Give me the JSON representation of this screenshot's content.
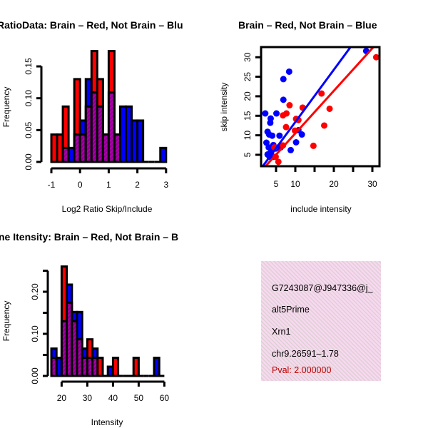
{
  "colors": {
    "red": "#ff0000",
    "blue": "#0000ff",
    "overlap": "#8b008b",
    "pval": "#c00000",
    "panel_bg": "#f6d6ee"
  },
  "chart_data": [
    {
      "type": "bar",
      "title": "RatioData: Brain – Red, Not Brain – Blu",
      "xlabel": "Log2 Ratio Skip/Include",
      "ylabel": "Frequency",
      "xlim": [
        -1,
        3
      ],
      "ylim": [
        0,
        0.15
      ],
      "xticks": [
        "-1",
        "0",
        "1",
        "2",
        "3"
      ],
      "xtick_values": [
        -1,
        0,
        1,
        2,
        3
      ],
      "yticks": [
        "0.00",
        "0.05",
        "0.10",
        "0.15"
      ],
      "ytick_values": [
        0,
        0.05,
        0.1,
        0.15
      ],
      "bin_start": -1,
      "bin_width": 0.2,
      "series": [
        {
          "name": "Brain",
          "color": "red",
          "values": [
            0.043,
            0.043,
            0.087,
            0,
            0.13,
            0.043,
            0.087,
            0.174,
            0.13,
            0.043,
            0.174,
            0.043,
            0,
            0,
            0,
            0,
            0,
            0,
            0,
            0
          ]
        },
        {
          "name": "Not Brain",
          "color": "blue",
          "values": [
            0,
            0,
            0.022,
            0.022,
            0.043,
            0.065,
            0.13,
            0.109,
            0.087,
            0.043,
            0.109,
            0.043,
            0.087,
            0.087,
            0.065,
            0.065,
            0,
            0,
            0,
            0.022
          ]
        }
      ]
    },
    {
      "type": "scatter",
      "title": "Brain – Red, Not Brain – Blue",
      "xlabel": "include intensity",
      "ylabel": "skip intensity",
      "xlim": [
        1.1,
        31.8
      ],
      "ylim": [
        2.1,
        32.6
      ],
      "xticks": [
        "5",
        "10",
        "",
        "20",
        "",
        "30"
      ],
      "xtick_values": [
        5,
        10,
        15,
        20,
        25,
        30
      ],
      "yticks": [
        "5",
        "10",
        "15",
        "20",
        "25",
        "30"
      ],
      "ytick_values": [
        5,
        10,
        15,
        20,
        25,
        30
      ],
      "series": [
        {
          "name": "Not Brain",
          "color": "blue",
          "points": [
            [
              2.2,
              15.6
            ],
            [
              3.6,
              14.3
            ],
            [
              3.5,
              13.2
            ],
            [
              5.1,
              15.6
            ],
            [
              6.9,
              24.4
            ],
            [
              8.4,
              26.3
            ],
            [
              6.9,
              19.1
            ],
            [
              2.8,
              10.9
            ],
            [
              3.2,
              10.2
            ],
            [
              4.0,
              9.9
            ],
            [
              5.9,
              9.9
            ],
            [
              10.2,
              8.2
            ],
            [
              8.8,
              6.2
            ],
            [
              10.8,
              11.3
            ],
            [
              11.7,
              10.2
            ],
            [
              28.4,
              31.6
            ],
            [
              2.5,
              8.1
            ],
            [
              3.1,
              6.9
            ],
            [
              3.7,
              5.7
            ],
            [
              4.3,
              7.5
            ],
            [
              4.9,
              6.6
            ],
            [
              2.8,
              5.1
            ],
            [
              3.3,
              4.5
            ],
            [
              4.3,
              4.5
            ],
            [
              5.6,
              6.9
            ],
            [
              6.2,
              6.9
            ]
          ],
          "fit": {
            "slope": 1.34,
            "intercept": 0.0
          }
        },
        {
          "name": "Brain",
          "color": "red",
          "points": [
            [
              8.5,
              17.7
            ],
            [
              11.9,
              17.1
            ],
            [
              6.8,
              15.1
            ],
            [
              7.7,
              15.6
            ],
            [
              7.6,
              12.1
            ],
            [
              9.9,
              11.2
            ],
            [
              10.8,
              13.9
            ],
            [
              10.2,
              14.2
            ],
            [
              16.8,
              20.7
            ],
            [
              18.9,
              16.8
            ],
            [
              17.5,
              12.5
            ],
            [
              14.7,
              7.3
            ],
            [
              31.0,
              30.0
            ],
            [
              5.6,
              3.2
            ],
            [
              4.9,
              4.5
            ],
            [
              4.6,
              6.9
            ],
            [
              6.8,
              7.4
            ]
          ],
          "fit": {
            "slope": 1.09,
            "intercept": -0.4
          }
        }
      ]
    },
    {
      "type": "bar",
      "title": "ne Itensity: Brain – Red, Not Brain – B",
      "xlabel": "Intensity",
      "ylabel": "Frequency",
      "xlim": [
        16,
        60
      ],
      "ylim": [
        0,
        0.25
      ],
      "xticks": [
        "20",
        "30",
        "40",
        "50",
        "60"
      ],
      "xtick_values": [
        20,
        30,
        40,
        50,
        60
      ],
      "yticks": [
        "0.00",
        "",
        "0.10",
        "",
        "0.20",
        ""
      ],
      "ytick_values": [
        0,
        0.05,
        0.1,
        0.15,
        0.2,
        0.25
      ],
      "bin_start": 16,
      "bin_width": 2,
      "series": [
        {
          "name": "Brain",
          "color": "red",
          "values": [
            0.043,
            0,
            0.26,
            0.174,
            0.13,
            0.087,
            0.043,
            0.087,
            0.043,
            0.043,
            0,
            0,
            0.043,
            0,
            0,
            0,
            0.043,
            0,
            0,
            0,
            0,
            0
          ]
        },
        {
          "name": "Not Brain",
          "color": "blue",
          "values": [
            0.065,
            0.043,
            0.13,
            0.217,
            0.152,
            0.152,
            0.065,
            0.043,
            0.065,
            0,
            0,
            0.022,
            0,
            0,
            0,
            0,
            0,
            0,
            0,
            0,
            0.043,
            0
          ]
        }
      ]
    }
  ],
  "info_panel": {
    "id": "G7243087@J947336@j_",
    "event_type": "alt5Prime",
    "gene": "Xrn1",
    "location": "chr9.26591–1.78",
    "pval": "Pval: 2.000000"
  }
}
